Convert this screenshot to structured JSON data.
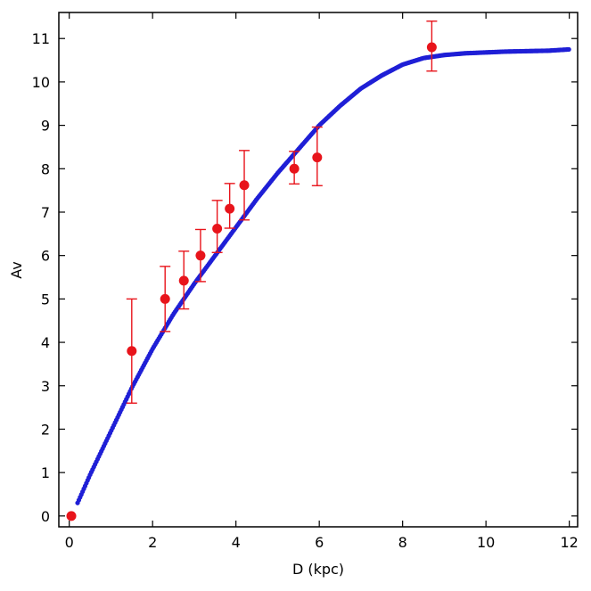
{
  "chart_data": {
    "type": "scatter",
    "title": "",
    "xlabel": "D (kpc)",
    "ylabel": "Av",
    "xlim": [
      -0.25,
      12.2
    ],
    "ylim": [
      -0.25,
      11.6
    ],
    "xticks": [
      0,
      2,
      4,
      6,
      8,
      10,
      12
    ],
    "yticks": [
      0,
      1,
      2,
      3,
      4,
      5,
      6,
      7,
      8,
      9,
      10,
      11
    ],
    "grid": false,
    "legend": "none",
    "colors": {
      "model": "#1f1fd6",
      "observed": "#e8141b"
    },
    "series": [
      {
        "type": "line",
        "x": [
          0.2,
          0.5,
          1.0,
          1.5,
          2.0,
          2.5,
          3.0,
          3.5,
          4.0,
          4.5,
          5.0,
          5.5,
          6.0,
          6.5,
          7.0,
          7.5,
          8.0,
          8.5,
          9.0,
          9.5,
          10.0,
          10.5,
          11.0,
          11.5,
          12.0
        ],
        "y": [
          0.3,
          0.95,
          1.95,
          2.95,
          3.85,
          4.65,
          5.35,
          6.0,
          6.65,
          7.3,
          7.9,
          8.45,
          9.0,
          9.45,
          9.85,
          10.15,
          10.4,
          10.55,
          10.62,
          10.66,
          10.68,
          10.7,
          10.71,
          10.72,
          10.75
        ]
      },
      {
        "type": "scatter",
        "x": [
          0.05,
          1.5,
          2.3,
          2.75,
          3.15,
          3.55,
          3.85,
          4.2,
          5.4,
          5.95,
          8.7
        ],
        "y": [
          0.0,
          3.8,
          5.0,
          5.42,
          6.0,
          6.62,
          7.08,
          7.62,
          8.0,
          8.26,
          10.8
        ],
        "err_low": [
          0.0,
          1.2,
          0.75,
          0.65,
          0.6,
          0.55,
          0.45,
          0.8,
          0.35,
          0.65,
          0.55
        ],
        "err_high": [
          0.0,
          1.2,
          0.75,
          0.68,
          0.6,
          0.65,
          0.58,
          0.8,
          0.4,
          0.7,
          0.6
        ]
      }
    ]
  }
}
